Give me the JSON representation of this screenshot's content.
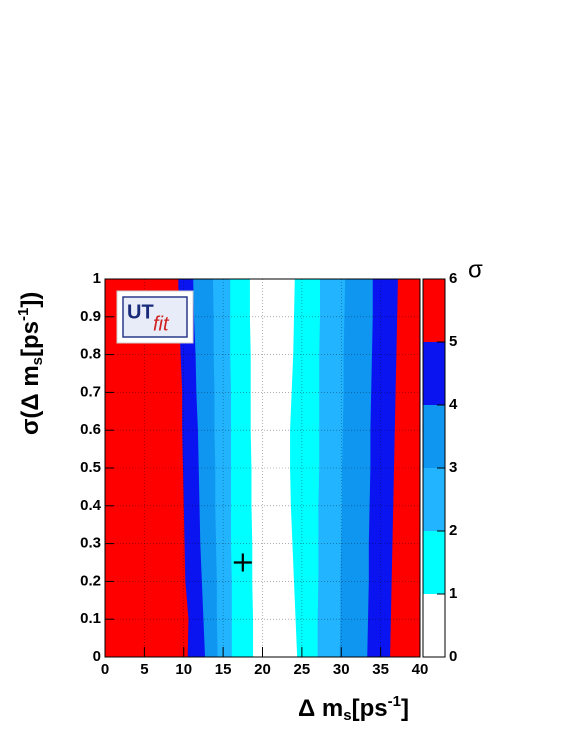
{
  "chart_data": {
    "type": "contour",
    "xlim": [
      0,
      40
    ],
    "xticks": [
      0,
      5,
      10,
      15,
      20,
      25,
      30,
      35,
      40
    ],
    "ylim": [
      0,
      1
    ],
    "yticks": [
      0,
      0.1,
      0.2,
      0.3,
      0.4,
      0.5,
      0.6,
      0.7,
      0.8,
      0.9,
      1
    ],
    "grid": true,
    "xlabel": [
      "Δ m",
      "s",
      "[ps",
      "-1",
      "]"
    ],
    "ylabel": [
      "σ(Δ m",
      "s",
      "[ps",
      "-1",
      "])"
    ],
    "colorbar_label": "σ",
    "colorbar_ticks": [
      0,
      1,
      2,
      3,
      4,
      5,
      6
    ],
    "band_colors": [
      "#ffffff",
      "#00ffff",
      "#22b4ff",
      "#0f96f0",
      "#0a14f0",
      "#ff0000"
    ],
    "y": [
      0,
      0.1,
      0.2,
      0.3,
      0.4,
      0.5,
      0.6,
      0.7,
      0.8,
      0.9,
      1
    ],
    "contours": [
      {
        "level": 5,
        "left": [
          10.5,
          10.6,
          10.2,
          10.1,
          10.0,
          9.9,
          9.8,
          9.8,
          9.6,
          9.4,
          9.3
        ],
        "right": [
          36.2,
          36.3,
          36.4,
          36.5,
          36.6,
          36.7,
          36.8,
          36.9,
          37.0,
          37.1,
          37.2
        ]
      },
      {
        "level": 4,
        "left": [
          12.7,
          12.5,
          12.3,
          12.1,
          12.0,
          11.9,
          11.8,
          11.6,
          11.5,
          11.3,
          11.2
        ],
        "right": [
          33.3,
          33.4,
          33.5,
          33.5,
          33.6,
          33.7,
          33.7,
          33.8,
          33.9,
          34.0,
          34.0
        ]
      },
      {
        "level": 3,
        "left": [
          14.3,
          14.2,
          14.2,
          14.1,
          14.0,
          14.0,
          13.9,
          13.9,
          13.8,
          13.8,
          13.7
        ],
        "right": [
          29.8,
          29.9,
          29.9,
          30.0,
          30.1,
          30.1,
          30.2,
          30.3,
          30.3,
          30.4,
          30.5
        ]
      },
      {
        "level": 2,
        "left": [
          16.1,
          16.1,
          16.1,
          16.0,
          16.0,
          16.0,
          16.0,
          16.0,
          15.9,
          15.9,
          15.9
        ],
        "right": [
          27.0,
          27.0,
          27.1,
          27.1,
          27.1,
          27.2,
          27.2,
          27.2,
          27.2,
          27.3,
          27.3
        ]
      },
      {
        "level": 1,
        "left": [
          18.8,
          18.8,
          18.7,
          18.7,
          18.6,
          18.6,
          18.5,
          18.5,
          18.5,
          18.4,
          18.4
        ],
        "right": [
          24.4,
          24.2,
          24.0,
          23.8,
          23.6,
          23.5,
          23.5,
          23.7,
          23.9,
          24.0,
          24.1
        ]
      }
    ],
    "marker": {
      "x": 17.5,
      "y": 0.25
    },
    "logo": [
      "UT",
      "fit"
    ]
  }
}
